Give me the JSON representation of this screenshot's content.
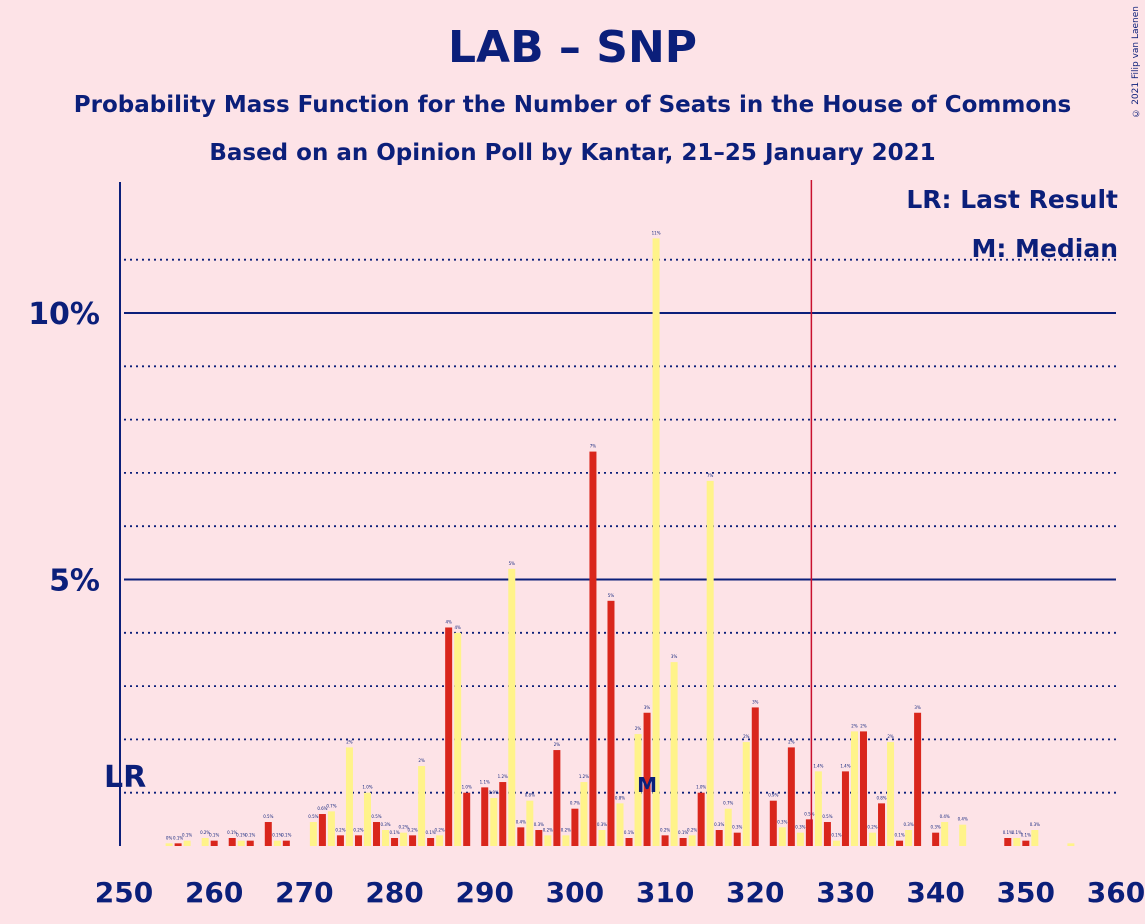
{
  "title": "LAB – SNP",
  "subtitle1": "Probability Mass Function for the Number of Seats in the House of Commons",
  "subtitle2": "Based on an Opinion Poll by Kantar, 21–25 January 2021",
  "copyright": "© 2021 Filip van Laenen",
  "legend": {
    "lr": "LR: Last Result",
    "median": "M: Median"
  },
  "markers": {
    "lr_label": "LR",
    "median_label": "M"
  },
  "colors": {
    "background": "#FDE3E7",
    "red": "#D9261C",
    "yellow": "#FFF38A",
    "axis": "#0B1F7A",
    "lr_line": "#C8102E"
  },
  "chart_data": {
    "type": "bar",
    "xlim": [
      250,
      360
    ],
    "ylim": [
      0,
      12.5
    ],
    "y_ticks": [
      {
        "value": 5,
        "label": "5%"
      },
      {
        "value": 10,
        "label": "10%"
      }
    ],
    "x_ticks": [
      250,
      260,
      270,
      280,
      290,
      300,
      310,
      320,
      330,
      340,
      350,
      360
    ],
    "last_result": 326,
    "median": 308,
    "series": [
      {
        "color": "red",
        "values": [
          [
            250,
            0
          ],
          [
            252,
            0
          ],
          [
            254,
            0
          ],
          [
            256,
            0.05
          ],
          [
            258,
            0
          ],
          [
            260,
            0.1
          ],
          [
            262,
            0.15
          ],
          [
            264,
            0.1
          ],
          [
            266,
            0.45
          ],
          [
            268,
            0.1
          ],
          [
            270,
            0
          ],
          [
            272,
            0.6
          ],
          [
            274,
            0.2
          ],
          [
            276,
            0.2
          ],
          [
            278,
            0.45
          ],
          [
            280,
            0.15
          ],
          [
            282,
            0.2
          ],
          [
            284,
            0.15
          ],
          [
            286,
            4.1
          ],
          [
            288,
            1
          ],
          [
            290,
            1.1
          ],
          [
            292,
            1.2
          ],
          [
            294,
            0.35
          ],
          [
            296,
            0.3
          ],
          [
            298,
            1.8
          ],
          [
            300,
            0.7
          ],
          [
            302,
            7.4
          ],
          [
            304,
            4.6
          ],
          [
            306,
            0.15
          ],
          [
            308,
            2.5
          ],
          [
            310,
            0.2
          ],
          [
            312,
            0.15
          ],
          [
            314,
            1
          ],
          [
            316,
            0.3
          ],
          [
            318,
            0.25
          ],
          [
            320,
            2.6
          ],
          [
            322,
            0.85
          ],
          [
            324,
            1.85
          ],
          [
            326,
            0.5
          ],
          [
            328,
            0.45
          ],
          [
            330,
            1.4
          ],
          [
            332,
            2.15
          ],
          [
            334,
            0.8
          ],
          [
            336,
            0.1
          ],
          [
            338,
            2.5
          ],
          [
            340,
            0.25
          ],
          [
            342,
            0
          ],
          [
            344,
            0
          ],
          [
            346,
            0
          ],
          [
            348,
            0.15
          ],
          [
            350,
            0.1
          ],
          [
            352,
            0
          ],
          [
            354,
            0
          ],
          [
            356,
            0
          ],
          [
            358,
            0
          ],
          [
            360,
            0
          ]
        ],
        "labels": {
          "256": "0.1%",
          "260": "0.1%",
          "262": "0.1%",
          "264": "0.1%",
          "266": "0.5%",
          "268": "0.1%",
          "272": "0.6%",
          "274": "0.2%",
          "276": "0.2%",
          "278": "0.5%",
          "280": "0.1%",
          "282": "0.2%",
          "284": "0.1%",
          "286": "4%",
          "288": "1.0%",
          "290": "1.1%",
          "292": "1.2%",
          "294": "0.4%",
          "296": "0.3%",
          "298": "2%",
          "300": "0.7%",
          "302": "7%",
          "304": "5%",
          "306": "0.1%",
          "308": "3%",
          "310": "0.2%",
          "312": "0.1%",
          "314": "1.0%",
          "316": "0.3%",
          "318": "0.3%",
          "320": "3%",
          "322": "0.9%",
          "324": "2%",
          "326": "0.5%",
          "328": "0.5%",
          "330": "1.4%",
          "332": "2%",
          "334": "0.8%",
          "336": "0.1%",
          "338": "3%",
          "340": "0.3%",
          "348": "0.1%",
          "350": "0.1%"
        }
      },
      {
        "color": "yellow",
        "values": [
          [
            251,
            0
          ],
          [
            253,
            0
          ],
          [
            255,
            0.05
          ],
          [
            257,
            0.1
          ],
          [
            259,
            0.15
          ],
          [
            261,
            0
          ],
          [
            263,
            0.1
          ],
          [
            265,
            0
          ],
          [
            267,
            0.1
          ],
          [
            269,
            0
          ],
          [
            271,
            0.45
          ],
          [
            273,
            0.65
          ],
          [
            275,
            1.85
          ],
          [
            277,
            1
          ],
          [
            279,
            0.3
          ],
          [
            281,
            0.25
          ],
          [
            283,
            1.5
          ],
          [
            285,
            0.2
          ],
          [
            287,
            4
          ],
          [
            289,
            0
          ],
          [
            291,
            0.9
          ],
          [
            293,
            5.2
          ],
          [
            295,
            0.85
          ],
          [
            297,
            0.2
          ],
          [
            299,
            0.2
          ],
          [
            301,
            1.2
          ],
          [
            303,
            0.3
          ],
          [
            305,
            0.8
          ],
          [
            307,
            2.1
          ],
          [
            309,
            11.4
          ],
          [
            311,
            3.45
          ],
          [
            313,
            0.2
          ],
          [
            315,
            6.85
          ],
          [
            317,
            0.7
          ],
          [
            319,
            1.95
          ],
          [
            321,
            0
          ],
          [
            323,
            0.35
          ],
          [
            325,
            0.25
          ],
          [
            327,
            1.4
          ],
          [
            329,
            0.1
          ],
          [
            331,
            2.15
          ],
          [
            333,
            0.25
          ],
          [
            335,
            1.95
          ],
          [
            337,
            0.3
          ],
          [
            339,
            0
          ],
          [
            341,
            0.45
          ],
          [
            343,
            0.4
          ],
          [
            345,
            0
          ],
          [
            347,
            0
          ],
          [
            349,
            0.15
          ],
          [
            351,
            0.3
          ],
          [
            353,
            0
          ],
          [
            355,
            0.05
          ],
          [
            357,
            0
          ],
          [
            359,
            0
          ]
        ],
        "labels": {
          "255": "0%",
          "257": "0.1%",
          "259": "0.2%",
          "263": "0.1%",
          "267": "0.1%",
          "271": "0.5%",
          "273": "0.7%",
          "275": "2%",
          "277": "1.0%",
          "279": "0.3%",
          "281": "0.2%",
          "283": "2%",
          "285": "0.2%",
          "287": "4%",
          "291": "0.9%",
          "293": "5%",
          "295": "0.8%",
          "297": "0.2%",
          "299": "0.2%",
          "301": "1.2%",
          "303": "0.3%",
          "305": "0.8%",
          "307": "2%",
          "309": "11%",
          "311": "3%",
          "313": "0.2%",
          "315": "7%",
          "317": "0.7%",
          "319": "2%",
          "323": "0.3%",
          "325": "0.3%",
          "327": "1.4%",
          "329": "0.1%",
          "331": "2%",
          "333": "0.2%",
          "335": "2%",
          "337": "0.3%",
          "341": "0.4%",
          "343": "0.4%",
          "349": "0.1%",
          "351": "0.3%"
        }
      }
    ]
  }
}
